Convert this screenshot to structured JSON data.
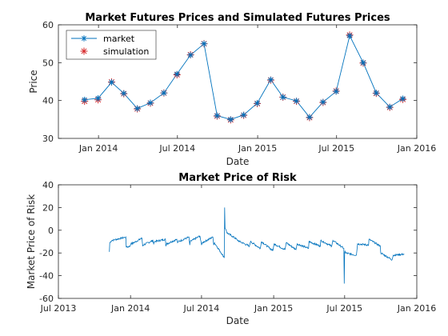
{
  "chart_data": [
    {
      "type": "line",
      "title": "Market Futures Prices and Simulated Futures Prices",
      "xlabel": "Date",
      "ylabel": "Price",
      "xlim": [
        "2013-10-01",
        "2016-01-01"
      ],
      "ylim": [
        30,
        60
      ],
      "xticks": [
        "2014-01-01",
        "2014-07-01",
        "2015-01-01",
        "2015-07-01",
        "2016-01-01"
      ],
      "xticklabels": [
        "Jan 2014",
        "Jul 2014",
        "Jan 2015",
        "Jul 2015",
        "Jan 2016"
      ],
      "yticks": [
        30,
        40,
        50,
        60
      ],
      "legend": {
        "placement": "top-left"
      },
      "x": [
        "2013-11-30",
        "2013-12-31",
        "2014-01-31",
        "2014-02-28",
        "2014-03-31",
        "2014-04-30",
        "2014-05-31",
        "2014-06-30",
        "2014-07-31",
        "2014-08-31",
        "2014-09-30",
        "2014-10-31",
        "2014-11-30",
        "2014-12-31",
        "2015-01-31",
        "2015-02-28",
        "2015-03-31",
        "2015-04-30",
        "2015-05-31",
        "2015-06-30",
        "2015-07-31",
        "2015-08-31",
        "2015-09-30",
        "2015-10-31",
        "2015-11-30"
      ],
      "series": [
        {
          "name": "market",
          "color": "#0072BD",
          "marker": "asterisk",
          "values": [
            40.2,
            40.6,
            44.8,
            41.9,
            37.9,
            39.4,
            42.0,
            47.0,
            52.0,
            55.0,
            36.0,
            35.0,
            36.2,
            39.3,
            45.5,
            40.9,
            39.9,
            35.6,
            39.6,
            42.4,
            57.1,
            50.0,
            42.0,
            38.3,
            40.5
          ]
        },
        {
          "name": "simulation",
          "color": "#D62728",
          "marker": "asterisk",
          "values": [
            39.8,
            40.2,
            44.9,
            41.8,
            37.8,
            39.3,
            42.0,
            46.8,
            52.1,
            55.0,
            35.9,
            34.9,
            36.1,
            39.2,
            45.4,
            40.9,
            39.8,
            35.5,
            39.5,
            42.5,
            57.3,
            49.9,
            41.9,
            38.2,
            40.3
          ]
        }
      ]
    },
    {
      "type": "line",
      "title": "Market Price of Risk",
      "xlabel": "Date",
      "ylabel": "Market Price of Risk",
      "xlim": [
        "2013-07-01",
        "2016-01-01"
      ],
      "ylim": [
        -60,
        40
      ],
      "xticks": [
        "2013-07-01",
        "2014-01-01",
        "2014-07-01",
        "2015-01-01",
        "2015-07-01",
        "2016-01-01"
      ],
      "xticklabels": [
        "Jul 2013",
        "Jan 2014",
        "Jul 2014",
        "Jan 2015",
        "Jul 2015",
        "Jan 2016"
      ],
      "yticks": [
        -60,
        -40,
        -20,
        0,
        20,
        40
      ],
      "series": [
        {
          "color": "#0072BD",
          "x": [
            "2013-11-08",
            "2013-11-09",
            "2013-11-14",
            "2013-12-20",
            "2013-12-21",
            "2013-12-31",
            "2014-01-03",
            "2014-01-04",
            "2014-01-30",
            "2014-02-01",
            "2014-02-02",
            "2014-02-27",
            "2014-03-01",
            "2014-03-03",
            "2014-03-31",
            "2014-04-01",
            "2014-04-03",
            "2014-04-29",
            "2014-05-01",
            "2014-05-03",
            "2014-05-30",
            "2014-06-01",
            "2014-06-02",
            "2014-06-27",
            "2014-07-01",
            "2014-07-03",
            "2014-07-30",
            "2014-08-01",
            "2014-08-03",
            "2014-08-28",
            "2014-08-29",
            "2014-08-30",
            "2014-09-02",
            "2014-09-03",
            "2014-09-29",
            "2014-10-01",
            "2014-10-31",
            "2014-11-03",
            "2014-11-28",
            "2014-12-01",
            "2014-12-30",
            "2015-01-02",
            "2015-01-30",
            "2015-02-02",
            "2015-02-27",
            "2015-03-02",
            "2015-03-31",
            "2015-04-01",
            "2015-04-30",
            "2015-05-01",
            "2015-05-29",
            "2015-06-01",
            "2015-06-29",
            "2015-06-30",
            "2015-07-01",
            "2015-07-02",
            "2015-07-03",
            "2015-07-31",
            "2015-08-03",
            "2015-08-31",
            "2015-09-01",
            "2015-09-30",
            "2015-10-01",
            "2015-10-30",
            "2015-11-02",
            "2015-11-30"
          ],
          "values": [
            -19,
            -11,
            -9,
            -6,
            -15,
            -14,
            -11,
            -12,
            -7,
            -14,
            -13,
            -9,
            -12,
            -10,
            -8,
            -14,
            -12,
            -8,
            -11,
            -10,
            -6,
            -13,
            -10,
            -5,
            -13,
            -11,
            -6,
            -13,
            -11,
            -24,
            20,
            2,
            0,
            -2,
            -8,
            -9,
            -14,
            -10,
            -16,
            -10,
            -18,
            -12,
            -17,
            -11,
            -17,
            -12,
            -16,
            -10,
            -14,
            -9,
            -14,
            -9,
            -16,
            -47,
            -20,
            -18,
            -20,
            -22,
            -12,
            -13,
            -8,
            -14,
            -20,
            -26,
            -22,
            -21
          ]
        }
      ]
    }
  ]
}
